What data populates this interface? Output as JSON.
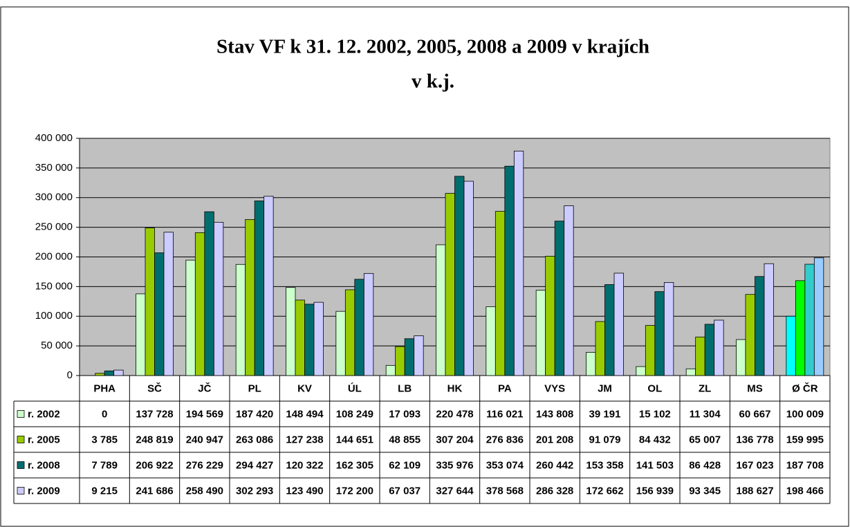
{
  "chart_data": {
    "type": "bar",
    "title": "Stav VF k 31. 12. 2002, 2005, 2008  a 2009 v krajích",
    "subtitle": "v k.j.",
    "categories": [
      "PHA",
      "SČ",
      "JČ",
      "PL",
      "KV",
      "ÚL",
      "LB",
      "HK",
      "PA",
      "VYS",
      "JM",
      "OL",
      "ZL",
      "MS",
      "Ø ČR"
    ],
    "series": [
      {
        "name": "r. 2002",
        "color": "#ccffcc",
        "colors": [
          "#ccffcc",
          "#ccffcc",
          "#ccffcc",
          "#ccffcc",
          "#ccffcc",
          "#ccffcc",
          "#ccffcc",
          "#ccffcc",
          "#ccffcc",
          "#ccffcc",
          "#ccffcc",
          "#ccffcc",
          "#ccffcc",
          "#ccffcc",
          "#00ffff"
        ],
        "values": [
          0,
          137728,
          194569,
          187420,
          148494,
          108249,
          17093,
          220478,
          116021,
          143808,
          39191,
          15102,
          11304,
          60667,
          100009
        ],
        "value_labels": [
          "0",
          "137 728",
          "194 569",
          "187 420",
          "148 494",
          "108 249",
          "17 093",
          "220 478",
          "116 021",
          "143 808",
          "39 191",
          "15 102",
          "11 304",
          "60 667",
          "100 009"
        ]
      },
      {
        "name": "r. 2005",
        "color": "#99cc00",
        "colors": [
          "#99cc00",
          "#99cc00",
          "#99cc00",
          "#99cc00",
          "#99cc00",
          "#99cc00",
          "#99cc00",
          "#99cc00",
          "#99cc00",
          "#99cc00",
          "#99cc00",
          "#99cc00",
          "#99cc00",
          "#99cc00",
          "#00ff00"
        ],
        "values": [
          3785,
          248819,
          240947,
          263086,
          127238,
          144651,
          48855,
          307204,
          276836,
          201208,
          91079,
          84432,
          65007,
          136778,
          159995
        ],
        "value_labels": [
          "3 785",
          "248 819",
          "240 947",
          "263 086",
          "127 238",
          "144 651",
          "48 855",
          "307 204",
          "276 836",
          "201 208",
          "91 079",
          "84 432",
          "65 007",
          "136 778",
          "159 995"
        ]
      },
      {
        "name": "r. 2008",
        "color": "#006e6e",
        "colors": [
          "#006e6e",
          "#006e6e",
          "#006e6e",
          "#006e6e",
          "#006e6e",
          "#006e6e",
          "#006e6e",
          "#006e6e",
          "#006e6e",
          "#006e6e",
          "#006e6e",
          "#006e6e",
          "#006e6e",
          "#006e6e",
          "#33cccc"
        ],
        "values": [
          7789,
          206922,
          276229,
          294427,
          120322,
          162305,
          62109,
          335976,
          353074,
          260442,
          153358,
          141503,
          86428,
          167023,
          187708
        ],
        "value_labels": [
          "7 789",
          "206 922",
          "276 229",
          "294 427",
          "120 322",
          "162 305",
          "62 109",
          "335 976",
          "353 074",
          "260 442",
          "153 358",
          "141 503",
          "86 428",
          "167 023",
          "187 708"
        ]
      },
      {
        "name": "r. 2009",
        "color": "#ccccff",
        "colors": [
          "#ccccff",
          "#ccccff",
          "#ccccff",
          "#ccccff",
          "#ccccff",
          "#ccccff",
          "#ccccff",
          "#ccccff",
          "#ccccff",
          "#ccccff",
          "#ccccff",
          "#ccccff",
          "#ccccff",
          "#ccccff",
          "#99ccff"
        ],
        "values": [
          9215,
          241686,
          258490,
          302293,
          123490,
          172200,
          67037,
          327644,
          378568,
          286328,
          172662,
          156939,
          93345,
          188627,
          198466
        ],
        "value_labels": [
          "9 215",
          "241 686",
          "258 490",
          "302 293",
          "123 490",
          "172 200",
          "67 037",
          "327 644",
          "378 568",
          "286 328",
          "172 662",
          "156 939",
          "93 345",
          "188 627",
          "198 466"
        ]
      }
    ],
    "ylim": [
      0,
      400000
    ],
    "yticks": [
      0,
      {
        "value": 50000,
        "label": "50 000"
      },
      {
        "value": 100000,
        "label": "100 000"
      },
      {
        "value": 150000,
        "label": "150 000"
      },
      {
        "value": 200000,
        "label": "200 000"
      },
      {
        "value": 250000,
        "label": "250 000"
      },
      {
        "value": 300000,
        "label": "300 000"
      },
      {
        "value": 350000,
        "label": "350 000"
      },
      {
        "value": 400000,
        "label": "400 000"
      }
    ],
    "grid": true,
    "plot_background": "#c0c0c0"
  }
}
